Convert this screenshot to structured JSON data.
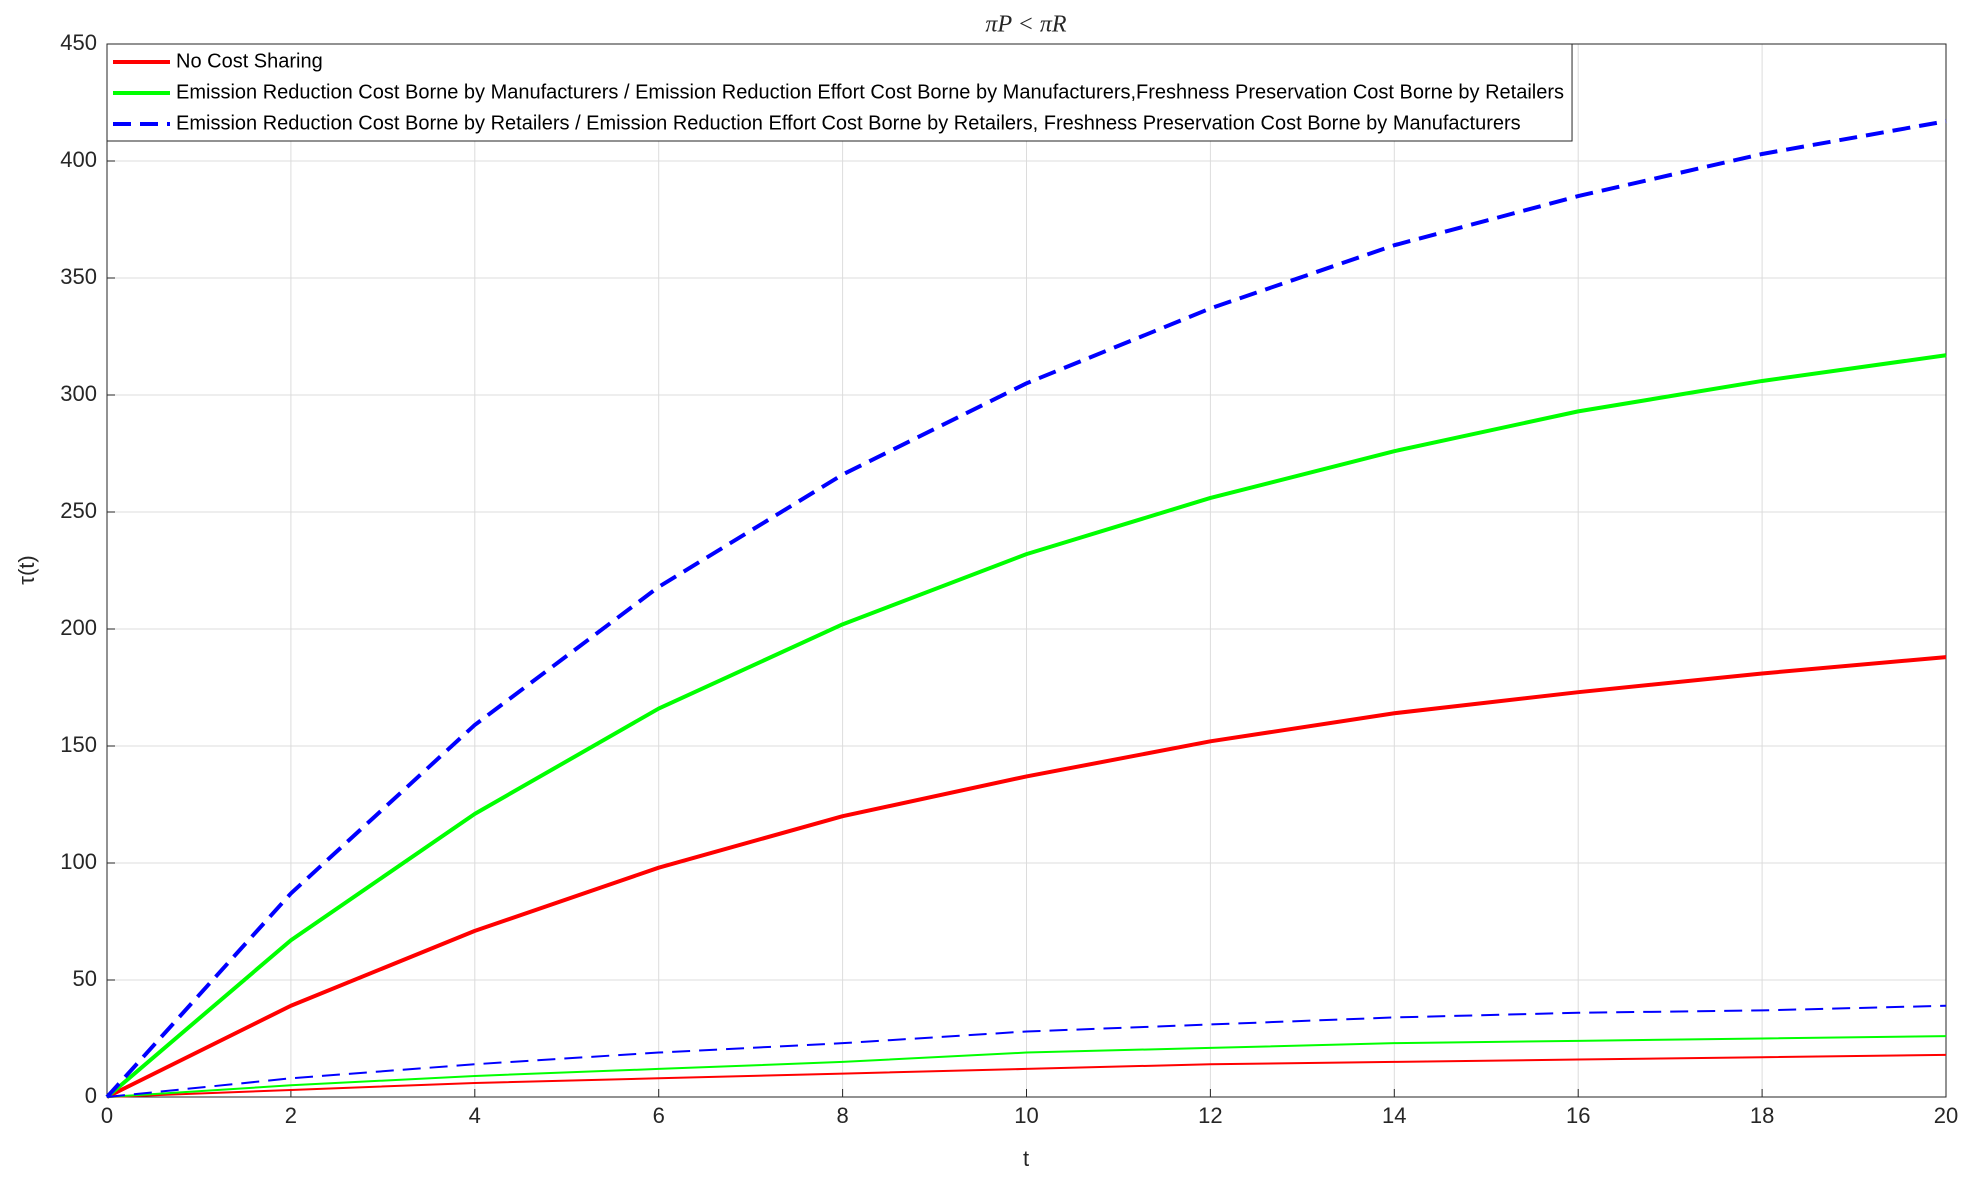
{
  "chart_data": {
    "type": "line",
    "title": "πP < πR",
    "xlabel": "t",
    "ylabel": "τ(t)",
    "x": [
      0,
      2,
      4,
      6,
      8,
      10,
      12,
      14,
      16,
      18,
      20
    ],
    "series": [
      {
        "name": "No Cost Sharing",
        "color": "#ff0000",
        "width": 4,
        "dash": "solid",
        "values": [
          0,
          39,
          71,
          98,
          120,
          137,
          152,
          164,
          173,
          181,
          188
        ]
      },
      {
        "name": "Emission Reduction Cost Borne by Manufacturers / Emission Reduction Effort Cost Borne by Manufacturers,Freshness Preservation Cost Borne by Retailers",
        "color": "#00ff00",
        "width": 4,
        "dash": "solid",
        "values": [
          0,
          67,
          121,
          166,
          202,
          232,
          256,
          276,
          293,
          306,
          317
        ]
      },
      {
        "name": "Emission Reduction Cost Borne by Retailers / Emission Reduction Effort Cost Borne by Retailers, Freshness Preservation Cost Borne by Manufacturers",
        "color": "#0000ff",
        "width": 4,
        "dash": "dashed",
        "values": [
          0,
          87,
          159,
          218,
          266,
          305,
          337,
          364,
          385,
          403,
          417
        ]
      },
      {
        "color": "#ff0000",
        "width": 2,
        "dash": "solid",
        "values": [
          0,
          3,
          6,
          8,
          10,
          12,
          14,
          15,
          16,
          17,
          18
        ]
      },
      {
        "color": "#00ff00",
        "width": 2,
        "dash": "solid",
        "values": [
          0,
          5,
          9,
          12,
          15,
          19,
          21,
          23,
          24,
          25,
          26
        ]
      },
      {
        "color": "#0000ff",
        "width": 2,
        "dash": "dashed",
        "values": [
          0,
          8,
          14,
          19,
          23,
          28,
          31,
          34,
          36,
          37,
          39
        ]
      }
    ],
    "xlim": [
      0,
      20
    ],
    "xticks": [
      0,
      2,
      4,
      6,
      8,
      10,
      12,
      14,
      16,
      18,
      20
    ],
    "ylim": [
      0,
      450
    ],
    "yticks": [
      0,
      50,
      100,
      150,
      200,
      250,
      300,
      350,
      400,
      450
    ],
    "grid": true,
    "legend": "top-left"
  }
}
